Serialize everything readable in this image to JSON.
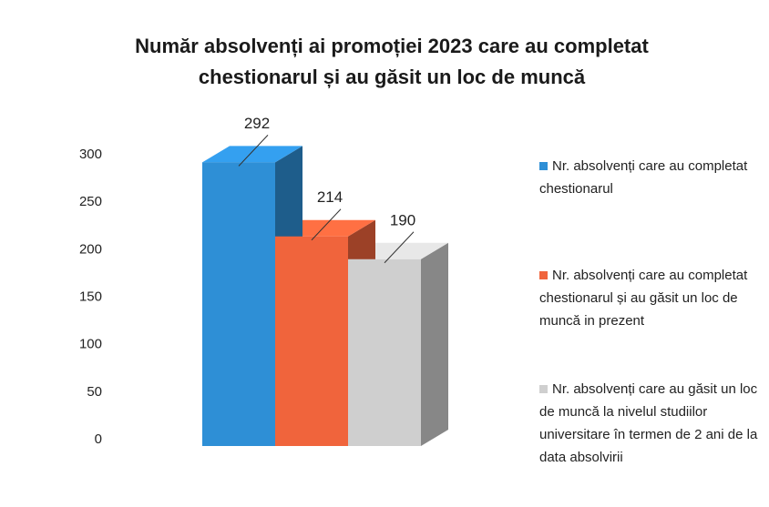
{
  "chart_data": {
    "type": "bar3d",
    "title": "Număr absolvenți ai promoției 2023 care au completat chestionarul și au găsit un loc de muncă",
    "categories": [
      null
    ],
    "series": [
      {
        "name": "Nr. absolvenți care au completat chestionarul",
        "color": "#2e8fd6",
        "values": [
          292
        ]
      },
      {
        "name": "Nr. absolvenți care au completat chestionarul și au găsit un loc de muncă in prezent",
        "color": "#f0643c",
        "values": [
          214
        ]
      },
      {
        "name": "Nr. absolvenți care au găsit un loc de muncă la nivelul studiilor universitare în termen de 2 ani de la data absolvirii",
        "color": "#cfcfcf",
        "values": [
          190
        ]
      }
    ],
    "ylim": [
      0,
      300
    ],
    "yticks": [
      0,
      50,
      100,
      150,
      200,
      250,
      300
    ],
    "grid": false,
    "legend": "right"
  }
}
